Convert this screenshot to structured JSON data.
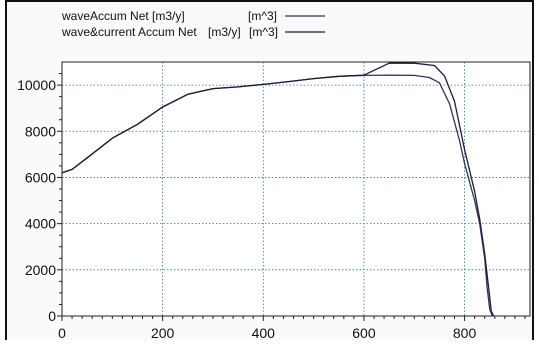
{
  "chart_data": {
    "type": "line",
    "title": "",
    "xlabel": "",
    "ylabel": "",
    "xlim": [
      0,
      930
    ],
    "ylim": [
      0,
      11000
    ],
    "x_ticks": [
      0,
      200,
      400,
      600,
      800
    ],
    "y_ticks": [
      0,
      2000,
      4000,
      6000,
      8000,
      10000
    ],
    "grid": true,
    "legend_position": "top",
    "legend": [
      {
        "name": "waveAccum Net",
        "unit1": "[m3/y]",
        "unit2": "[m^3]"
      },
      {
        "name": "wave&current Accum Net",
        "unit1": "[m3/y]",
        "unit2": "[m^3]"
      }
    ],
    "series": [
      {
        "name": "waveAccum Net",
        "color": "#33335a",
        "x": [
          0,
          20,
          50,
          100,
          150,
          200,
          250,
          300,
          350,
          400,
          450,
          500,
          550,
          600,
          650,
          700,
          730,
          750,
          770,
          790,
          800,
          810,
          820,
          830,
          840,
          845,
          850,
          855
        ],
        "y": [
          6200,
          6350,
          6850,
          7700,
          8300,
          9050,
          9600,
          9850,
          9920,
          10030,
          10150,
          10280,
          10380,
          10420,
          10430,
          10420,
          10330,
          10100,
          9200,
          7600,
          6600,
          5800,
          5000,
          4000,
          2500,
          1200,
          300,
          0
        ]
      },
      {
        "name": "wave&current Accum Net",
        "color": "#1d1d3a",
        "x": [
          0,
          20,
          50,
          100,
          150,
          200,
          250,
          300,
          350,
          400,
          450,
          500,
          550,
          600,
          650,
          700,
          740,
          760,
          780,
          800,
          810,
          820,
          830,
          840,
          848,
          853,
          858
        ],
        "y": [
          6200,
          6350,
          6850,
          7700,
          8300,
          9050,
          9600,
          9850,
          9920,
          10030,
          10150,
          10280,
          10380,
          10430,
          10950,
          10950,
          10850,
          10400,
          9300,
          7200,
          6300,
          5400,
          4200,
          2700,
          1200,
          200,
          0
        ]
      }
    ]
  }
}
